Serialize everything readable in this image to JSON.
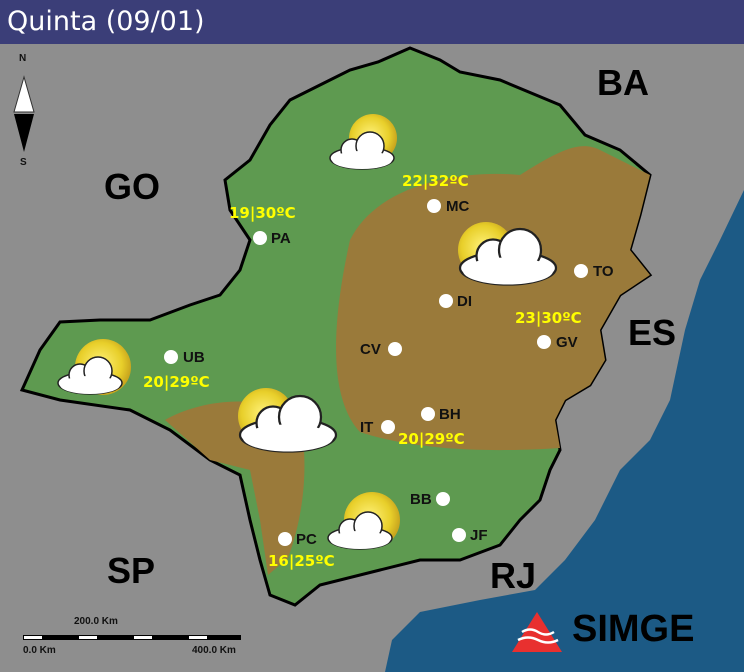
{
  "title": "Quinta (09/01)",
  "compass": {
    "north": "N",
    "south": "S"
  },
  "states": [
    {
      "id": "ba",
      "label": "BA"
    },
    {
      "id": "go",
      "label": "GO"
    },
    {
      "id": "es",
      "label": "ES"
    },
    {
      "id": "sp",
      "label": "SP"
    },
    {
      "id": "rj",
      "label": "RJ"
    }
  ],
  "cities": [
    {
      "id": "mc",
      "label": "MC"
    },
    {
      "id": "pa",
      "label": "PA"
    },
    {
      "id": "to",
      "label": "TO"
    },
    {
      "id": "di",
      "label": "DI"
    },
    {
      "id": "cv",
      "label": "CV"
    },
    {
      "id": "gv",
      "label": "GV"
    },
    {
      "id": "ub",
      "label": "UB"
    },
    {
      "id": "it",
      "label": "IT"
    },
    {
      "id": "bh",
      "label": "BH"
    },
    {
      "id": "bb",
      "label": "BB"
    },
    {
      "id": "jf",
      "label": "JF"
    },
    {
      "id": "pc",
      "label": "PC"
    }
  ],
  "temps": {
    "north": "22|32ºC",
    "northwest": "19|30ºC",
    "east": "23|30ºC",
    "triangulo": "20|29ºC",
    "central": "20|29ºC",
    "south": "16|25ºC"
  },
  "weather_icons": [
    "sun-with-clouds",
    "sun-with-clouds",
    "sun-with-clouds",
    "sun-with-clouds",
    "sun-with-clouds"
  ],
  "scale": {
    "top": "200.0 Km",
    "left": "0.0 Km",
    "right": "400.0 Km"
  },
  "logo": "SIMGE",
  "colors": {
    "header": "#3b3e78",
    "land_green": "#5e9a50",
    "forecast_brown": "#9a7a3a",
    "ocean": "#1c5a85",
    "temp_text": "#ffff00",
    "logo_red": "#e8302f"
  }
}
